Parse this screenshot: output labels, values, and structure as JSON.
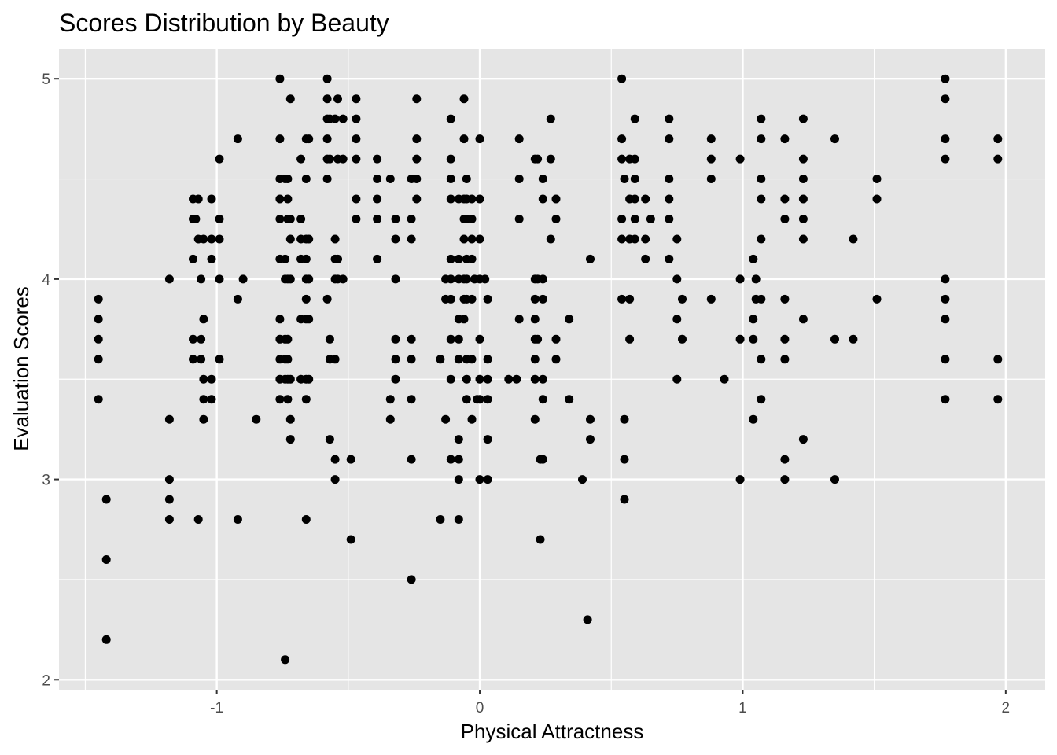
{
  "chart_data": {
    "type": "scatter",
    "title": "Scores Distribution by Beauty",
    "xlabel": "Physical Attractness",
    "ylabel": "Evaluation Scores",
    "xlim": [
      -1.6,
      2.15
    ],
    "ylim": [
      1.95,
      5.15
    ],
    "x_ticks": [
      -1,
      0,
      1,
      2
    ],
    "x_tick_labels": [
      "-1",
      "0",
      "1",
      "2"
    ],
    "y_ticks": [
      2,
      3,
      4,
      5
    ],
    "y_tick_labels": [
      "2",
      "3",
      "4",
      "5"
    ],
    "grid": true,
    "legend": "none",
    "colors": {
      "panel": "#e5e5e5",
      "grid": "#ffffff",
      "point": "#000000"
    },
    "points": [
      [
        -1.45,
        3.9
      ],
      [
        -1.45,
        3.8
      ],
      [
        -1.45,
        3.7
      ],
      [
        -1.45,
        3.6
      ],
      [
        -1.45,
        3.4
      ],
      [
        -1.42,
        2.9
      ],
      [
        -1.42,
        2.6
      ],
      [
        -1.42,
        2.2
      ],
      [
        -1.18,
        4.0
      ],
      [
        -1.18,
        3.3
      ],
      [
        -1.18,
        3.0
      ],
      [
        -1.18,
        2.9
      ],
      [
        -1.18,
        2.8
      ],
      [
        -1.09,
        4.4
      ],
      [
        -1.09,
        4.3
      ],
      [
        -1.09,
        4.1
      ],
      [
        -1.09,
        3.7
      ],
      [
        -1.09,
        3.6
      ],
      [
        -1.08,
        4.3
      ],
      [
        -1.07,
        4.2
      ],
      [
        -1.07,
        4.4
      ],
      [
        -1.06,
        3.7
      ],
      [
        -1.06,
        4.0
      ],
      [
        -1.06,
        3.6
      ],
      [
        -1.07,
        2.8
      ],
      [
        -1.05,
        4.2
      ],
      [
        -1.05,
        3.8
      ],
      [
        -1.05,
        3.5
      ],
      [
        -1.05,
        3.4
      ],
      [
        -1.05,
        3.3
      ],
      [
        -1.02,
        4.4
      ],
      [
        -1.02,
        4.2
      ],
      [
        -1.02,
        4.1
      ],
      [
        -1.02,
        3.5
      ],
      [
        -1.02,
        3.4
      ],
      [
        -0.99,
        4.6
      ],
      [
        -0.99,
        4.3
      ],
      [
        -0.99,
        4.2
      ],
      [
        -0.99,
        4.0
      ],
      [
        -0.99,
        3.6
      ],
      [
        -0.92,
        4.7
      ],
      [
        -0.92,
        3.9
      ],
      [
        -0.92,
        2.8
      ],
      [
        -0.9,
        4.0
      ],
      [
        -0.85,
        3.3
      ],
      [
        -0.76,
        5.0
      ],
      [
        -0.76,
        4.7
      ],
      [
        -0.76,
        4.5
      ],
      [
        -0.76,
        4.4
      ],
      [
        -0.76,
        4.3
      ],
      [
        -0.76,
        4.1
      ],
      [
        -0.76,
        3.8
      ],
      [
        -0.76,
        3.7
      ],
      [
        -0.76,
        3.6
      ],
      [
        -0.76,
        3.5
      ],
      [
        -0.76,
        3.4
      ],
      [
        -0.74,
        4.5
      ],
      [
        -0.74,
        4.1
      ],
      [
        -0.74,
        4.0
      ],
      [
        -0.74,
        3.7
      ],
      [
        -0.74,
        3.6
      ],
      [
        -0.74,
        3.5
      ],
      [
        -0.74,
        2.1
      ],
      [
        -0.73,
        4.5
      ],
      [
        -0.73,
        4.4
      ],
      [
        -0.73,
        4.3
      ],
      [
        -0.73,
        4.0
      ],
      [
        -0.73,
        3.7
      ],
      [
        -0.73,
        3.6
      ],
      [
        -0.73,
        3.5
      ],
      [
        -0.73,
        3.4
      ],
      [
        -0.72,
        4.9
      ],
      [
        -0.72,
        4.3
      ],
      [
        -0.72,
        4.2
      ],
      [
        -0.72,
        4.0
      ],
      [
        -0.72,
        3.5
      ],
      [
        -0.72,
        3.3
      ],
      [
        -0.72,
        3.2
      ],
      [
        -0.68,
        4.6
      ],
      [
        -0.68,
        4.3
      ],
      [
        -0.68,
        4.2
      ],
      [
        -0.68,
        4.1
      ],
      [
        -0.68,
        3.8
      ],
      [
        -0.68,
        3.5
      ],
      [
        -0.66,
        4.7
      ],
      [
        -0.66,
        4.5
      ],
      [
        -0.66,
        4.2
      ],
      [
        -0.66,
        4.1
      ],
      [
        -0.66,
        4.0
      ],
      [
        -0.66,
        3.9
      ],
      [
        -0.66,
        3.8
      ],
      [
        -0.66,
        3.5
      ],
      [
        -0.66,
        3.4
      ],
      [
        -0.66,
        2.8
      ],
      [
        -0.65,
        4.7
      ],
      [
        -0.65,
        4.2
      ],
      [
        -0.65,
        4.0
      ],
      [
        -0.65,
        3.8
      ],
      [
        -0.65,
        3.5
      ],
      [
        -0.58,
        5.0
      ],
      [
        -0.58,
        4.9
      ],
      [
        -0.58,
        4.8
      ],
      [
        -0.58,
        4.7
      ],
      [
        -0.58,
        4.6
      ],
      [
        -0.58,
        4.5
      ],
      [
        -0.58,
        3.9
      ],
      [
        -0.57,
        4.8
      ],
      [
        -0.57,
        4.6
      ],
      [
        -0.57,
        3.7
      ],
      [
        -0.57,
        3.6
      ],
      [
        -0.57,
        3.2
      ],
      [
        -0.55,
        4.8
      ],
      [
        -0.55,
        4.2
      ],
      [
        -0.55,
        4.1
      ],
      [
        -0.55,
        4.0
      ],
      [
        -0.55,
        3.6
      ],
      [
        -0.55,
        3.1
      ],
      [
        -0.55,
        3.0
      ],
      [
        -0.54,
        4.9
      ],
      [
        -0.54,
        4.6
      ],
      [
        -0.54,
        4.1
      ],
      [
        -0.54,
        4.0
      ],
      [
        -0.52,
        4.8
      ],
      [
        -0.52,
        4.6
      ],
      [
        -0.52,
        4.0
      ],
      [
        -0.49,
        3.1
      ],
      [
        -0.49,
        2.7
      ],
      [
        -0.47,
        4.9
      ],
      [
        -0.47,
        4.8
      ],
      [
        -0.47,
        4.7
      ],
      [
        -0.47,
        4.6
      ],
      [
        -0.47,
        4.4
      ],
      [
        -0.47,
        4.3
      ],
      [
        -0.39,
        4.6
      ],
      [
        -0.39,
        4.5
      ],
      [
        -0.39,
        4.4
      ],
      [
        -0.39,
        4.3
      ],
      [
        -0.39,
        4.1
      ],
      [
        -0.34,
        4.5
      ],
      [
        -0.34,
        3.4
      ],
      [
        -0.34,
        3.3
      ],
      [
        -0.32,
        4.3
      ],
      [
        -0.32,
        4.2
      ],
      [
        -0.32,
        4.0
      ],
      [
        -0.32,
        3.7
      ],
      [
        -0.32,
        3.6
      ],
      [
        -0.32,
        3.5
      ],
      [
        -0.26,
        4.5
      ],
      [
        -0.26,
        4.3
      ],
      [
        -0.26,
        4.2
      ],
      [
        -0.26,
        3.7
      ],
      [
        -0.26,
        3.6
      ],
      [
        -0.26,
        3.4
      ],
      [
        -0.26,
        3.1
      ],
      [
        -0.26,
        2.5
      ],
      [
        -0.24,
        4.9
      ],
      [
        -0.24,
        4.7
      ],
      [
        -0.24,
        4.6
      ],
      [
        -0.24,
        4.5
      ],
      [
        -0.24,
        4.4
      ],
      [
        -0.15,
        3.6
      ],
      [
        -0.15,
        2.8
      ],
      [
        -0.13,
        4.0
      ],
      [
        -0.13,
        3.9
      ],
      [
        -0.13,
        3.3
      ],
      [
        -0.11,
        4.8
      ],
      [
        -0.11,
        4.6
      ],
      [
        -0.11,
        4.5
      ],
      [
        -0.11,
        4.4
      ],
      [
        -0.11,
        4.1
      ],
      [
        -0.11,
        4.0
      ],
      [
        -0.11,
        3.9
      ],
      [
        -0.11,
        3.7
      ],
      [
        -0.11,
        3.5
      ],
      [
        -0.11,
        3.1
      ],
      [
        -0.08,
        4.4
      ],
      [
        -0.08,
        4.1
      ],
      [
        -0.08,
        4.0
      ],
      [
        -0.08,
        3.8
      ],
      [
        -0.08,
        3.7
      ],
      [
        -0.08,
        3.6
      ],
      [
        -0.08,
        3.2
      ],
      [
        -0.08,
        3.1
      ],
      [
        -0.08,
        3.0
      ],
      [
        -0.08,
        2.8
      ],
      [
        -0.06,
        4.9
      ],
      [
        -0.06,
        4.7
      ],
      [
        -0.06,
        4.4
      ],
      [
        -0.06,
        4.3
      ],
      [
        -0.06,
        4.2
      ],
      [
        -0.06,
        4.0
      ],
      [
        -0.06,
        3.9
      ],
      [
        -0.06,
        3.8
      ],
      [
        -0.05,
        4.5
      ],
      [
        -0.05,
        4.4
      ],
      [
        -0.05,
        4.3
      ],
      [
        -0.05,
        4.1
      ],
      [
        -0.05,
        4.0
      ],
      [
        -0.05,
        3.9
      ],
      [
        -0.05,
        3.6
      ],
      [
        -0.05,
        3.5
      ],
      [
        -0.05,
        3.4
      ],
      [
        -0.03,
        4.4
      ],
      [
        -0.03,
        4.3
      ],
      [
        -0.03,
        4.2
      ],
      [
        -0.03,
        4.1
      ],
      [
        -0.03,
        3.9
      ],
      [
        -0.03,
        3.6
      ],
      [
        -0.03,
        3.3
      ],
      [
        -0.02,
        4.0
      ],
      [
        -0.01,
        3.4
      ],
      [
        0.0,
        4.7
      ],
      [
        0.0,
        4.4
      ],
      [
        0.0,
        4.2
      ],
      [
        0.0,
        4.0
      ],
      [
        0.0,
        3.7
      ],
      [
        0.0,
        3.5
      ],
      [
        0.0,
        3.4
      ],
      [
        0.0,
        3.0
      ],
      [
        0.02,
        4.0
      ],
      [
        0.03,
        3.9
      ],
      [
        0.03,
        3.6
      ],
      [
        0.03,
        3.5
      ],
      [
        0.03,
        3.4
      ],
      [
        0.03,
        3.2
      ],
      [
        0.03,
        3.0
      ],
      [
        0.11,
        3.5
      ],
      [
        0.14,
        3.5
      ],
      [
        0.15,
        4.7
      ],
      [
        0.15,
        4.5
      ],
      [
        0.15,
        4.3
      ],
      [
        0.15,
        3.8
      ],
      [
        0.21,
        4.6
      ],
      [
        0.21,
        4.0
      ],
      [
        0.21,
        3.9
      ],
      [
        0.21,
        3.8
      ],
      [
        0.21,
        3.7
      ],
      [
        0.21,
        3.6
      ],
      [
        0.21,
        3.5
      ],
      [
        0.21,
        3.3
      ],
      [
        0.22,
        4.6
      ],
      [
        0.22,
        4.0
      ],
      [
        0.22,
        3.7
      ],
      [
        0.23,
        3.1
      ],
      [
        0.23,
        2.7
      ],
      [
        0.24,
        4.5
      ],
      [
        0.24,
        4.4
      ],
      [
        0.24,
        4.0
      ],
      [
        0.24,
        3.9
      ],
      [
        0.24,
        3.5
      ],
      [
        0.24,
        3.4
      ],
      [
        0.24,
        3.1
      ],
      [
        0.27,
        4.8
      ],
      [
        0.27,
        4.6
      ],
      [
        0.27,
        4.2
      ],
      [
        0.29,
        4.4
      ],
      [
        0.29,
        4.3
      ],
      [
        0.29,
        3.7
      ],
      [
        0.29,
        3.6
      ],
      [
        0.34,
        3.8
      ],
      [
        0.34,
        3.4
      ],
      [
        0.39,
        3.0
      ],
      [
        0.41,
        2.3
      ],
      [
        0.42,
        4.1
      ],
      [
        0.42,
        3.3
      ],
      [
        0.42,
        3.2
      ],
      [
        0.54,
        5.0
      ],
      [
        0.54,
        4.7
      ],
      [
        0.54,
        4.6
      ],
      [
        0.54,
        4.3
      ],
      [
        0.54,
        4.2
      ],
      [
        0.54,
        3.9
      ],
      [
        0.55,
        4.5
      ],
      [
        0.55,
        3.3
      ],
      [
        0.55,
        3.1
      ],
      [
        0.55,
        2.9
      ],
      [
        0.57,
        4.6
      ],
      [
        0.57,
        4.4
      ],
      [
        0.57,
        4.2
      ],
      [
        0.57,
        3.9
      ],
      [
        0.57,
        3.7
      ],
      [
        0.59,
        4.8
      ],
      [
        0.59,
        4.6
      ],
      [
        0.59,
        4.5
      ],
      [
        0.59,
        4.4
      ],
      [
        0.59,
        4.3
      ],
      [
        0.59,
        4.2
      ],
      [
        0.63,
        4.4
      ],
      [
        0.63,
        4.2
      ],
      [
        0.63,
        4.1
      ],
      [
        0.65,
        4.3
      ],
      [
        0.72,
        4.8
      ],
      [
        0.72,
        4.7
      ],
      [
        0.72,
        4.5
      ],
      [
        0.72,
        4.4
      ],
      [
        0.72,
        4.3
      ],
      [
        0.72,
        4.1
      ],
      [
        0.75,
        4.2
      ],
      [
        0.75,
        4.0
      ],
      [
        0.75,
        3.8
      ],
      [
        0.75,
        3.5
      ],
      [
        0.77,
        3.9
      ],
      [
        0.77,
        3.7
      ],
      [
        0.88,
        4.7
      ],
      [
        0.88,
        4.6
      ],
      [
        0.88,
        4.5
      ],
      [
        0.88,
        3.9
      ],
      [
        0.93,
        3.5
      ],
      [
        0.99,
        4.6
      ],
      [
        0.99,
        4.0
      ],
      [
        0.99,
        3.7
      ],
      [
        0.99,
        3.0
      ],
      [
        1.04,
        4.1
      ],
      [
        1.04,
        3.8
      ],
      [
        1.04,
        3.7
      ],
      [
        1.04,
        3.3
      ],
      [
        1.05,
        4.0
      ],
      [
        1.05,
        3.9
      ],
      [
        1.07,
        4.8
      ],
      [
        1.07,
        4.7
      ],
      [
        1.07,
        4.5
      ],
      [
        1.07,
        4.4
      ],
      [
        1.07,
        4.2
      ],
      [
        1.07,
        3.9
      ],
      [
        1.07,
        3.6
      ],
      [
        1.07,
        3.4
      ],
      [
        1.16,
        4.7
      ],
      [
        1.16,
        4.4
      ],
      [
        1.16,
        4.3
      ],
      [
        1.16,
        3.9
      ],
      [
        1.16,
        3.7
      ],
      [
        1.16,
        3.6
      ],
      [
        1.16,
        3.1
      ],
      [
        1.16,
        3.0
      ],
      [
        1.23,
        4.8
      ],
      [
        1.23,
        4.6
      ],
      [
        1.23,
        4.5
      ],
      [
        1.23,
        4.4
      ],
      [
        1.23,
        4.3
      ],
      [
        1.23,
        4.2
      ],
      [
        1.23,
        3.8
      ],
      [
        1.23,
        3.2
      ],
      [
        1.35,
        4.7
      ],
      [
        1.35,
        3.7
      ],
      [
        1.35,
        3.0
      ],
      [
        1.42,
        4.2
      ],
      [
        1.42,
        3.7
      ],
      [
        1.51,
        4.5
      ],
      [
        1.51,
        4.4
      ],
      [
        1.51,
        3.9
      ],
      [
        1.77,
        5.0
      ],
      [
        1.77,
        4.9
      ],
      [
        1.77,
        4.7
      ],
      [
        1.77,
        4.6
      ],
      [
        1.77,
        4.0
      ],
      [
        1.77,
        3.9
      ],
      [
        1.77,
        3.8
      ],
      [
        1.77,
        3.6
      ],
      [
        1.77,
        3.4
      ],
      [
        1.97,
        4.7
      ],
      [
        1.97,
        4.6
      ],
      [
        1.97,
        3.6
      ],
      [
        1.97,
        3.4
      ]
    ]
  }
}
